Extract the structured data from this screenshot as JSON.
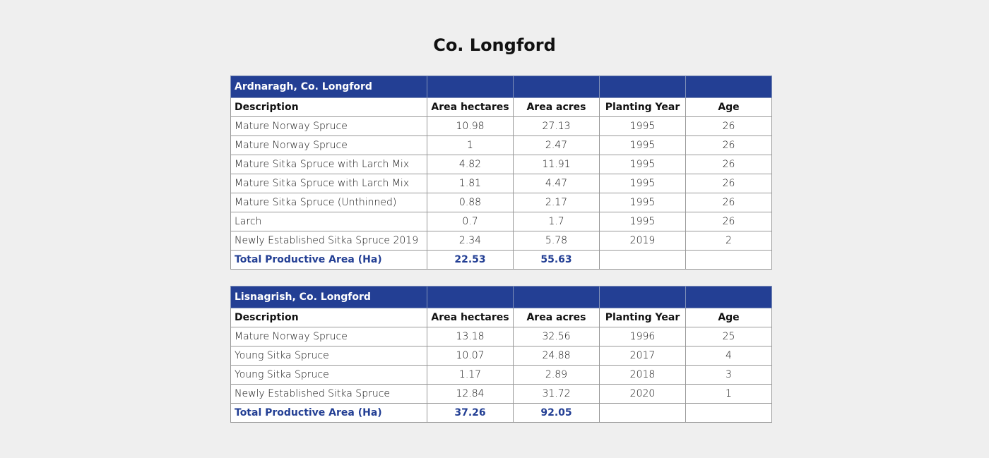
{
  "title": "Co. Longford",
  "tables": [
    {
      "caption": "Ardnaragh, Co. Longford",
      "header": [
        "Description",
        "Area hectares",
        "Area acres",
        "Planting Year",
        "Age"
      ],
      "rows": [
        [
          "Mature Norway Spruce",
          "10.98",
          "27.13",
          "1995",
          "26"
        ],
        [
          "Mature Norway Spruce",
          "1",
          "2.47",
          "1995",
          "26"
        ],
        [
          "Mature Sitka Spruce with Larch Mix",
          "4.82",
          "11.91",
          "1995",
          "26"
        ],
        [
          "Mature Sitka Spruce with Larch Mix",
          "1.81",
          "4.47",
          "1995",
          "26"
        ],
        [
          "Mature Sitka Spruce (Unthinned)",
          "0.88",
          "2.17",
          "1995",
          "26"
        ],
        [
          "Larch",
          "0.7",
          "1.7",
          "1995",
          "26"
        ],
        [
          "Newly Established Sitka Spruce 2019",
          "2.34",
          "5.78",
          "2019",
          "2"
        ]
      ],
      "total": [
        "Total Productive Area (Ha)",
        "22.53",
        "55.63"
      ]
    },
    {
      "caption": "Lisnagrish, Co. Longford",
      "header": [
        "Description",
        "Area hectares",
        "Area acres",
        "Planting Year",
        "Age"
      ],
      "rows": [
        [
          "Mature Norway Spruce",
          "13.18",
          "32.56",
          "1996",
          "25"
        ],
        [
          "Young Sitka Spruce",
          "10.07",
          "24.88",
          "2017",
          "4"
        ],
        [
          "Young Sitka Spruce",
          "1.17",
          "2.89",
          "2018",
          "3"
        ],
        [
          "Newly Established Sitka Spruce",
          "12.84",
          "31.72",
          "2020",
          "1"
        ]
      ],
      "total": [
        "Total Productive Area (Ha)",
        "37.26",
        "92.05"
      ]
    }
  ]
}
